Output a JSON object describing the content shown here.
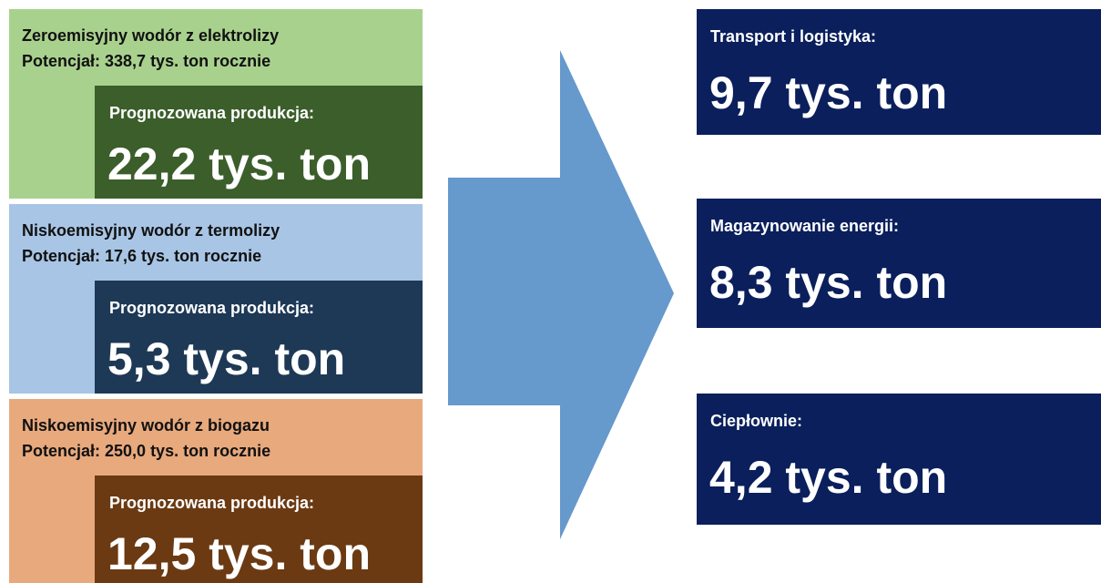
{
  "sources": [
    {
      "title": "Zeroemisyjny wodór z elektrolizy",
      "potential": "Potencjał: 338,7 tys. ton rocznie",
      "forecast_label": "Prognozowana produkcja:",
      "forecast_value": "22,2 tys. ton"
    },
    {
      "title": "Niskoemisyjny wodór z termolizy",
      "potential": "Potencjał: 17,6 tys. ton rocznie",
      "forecast_label": "Prognozowana produkcja:",
      "forecast_value": "5,3 tys. ton"
    },
    {
      "title": "Niskoemisyjny wodór z biogazu",
      "potential": "Potencjał: 250,0 tys. ton rocznie",
      "forecast_label": "Prognozowana produkcja:",
      "forecast_value": "12,5 tys. ton"
    }
  ],
  "uses": [
    {
      "label": "Transport i logistyka:",
      "value": "9,7 tys. ton"
    },
    {
      "label": "Magazynowanie energii:",
      "value": "8,3 tys. ton"
    },
    {
      "label": "Ciepłownie:",
      "value": "4,2 tys. ton"
    }
  ]
}
